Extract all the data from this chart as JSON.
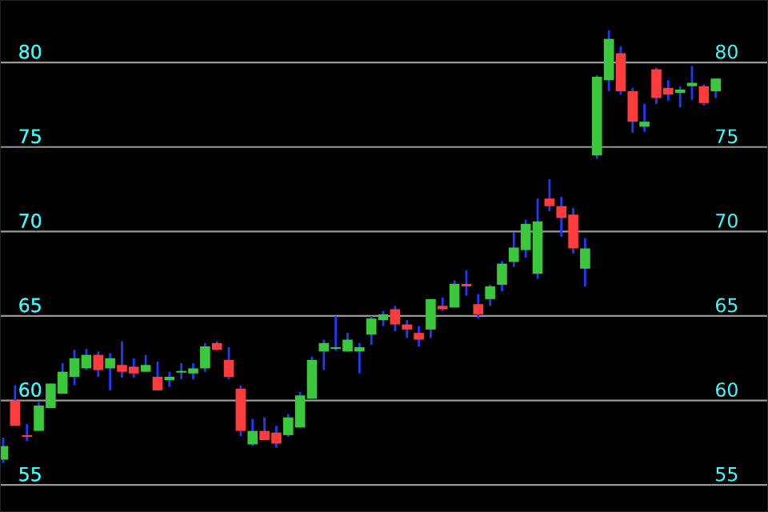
{
  "chart_data": {
    "type": "candlestick",
    "categories": [
      null,
      null,
      null,
      null,
      null,
      null,
      null,
      null,
      null,
      null,
      null,
      null,
      null,
      null,
      null,
      null,
      null,
      null,
      null,
      null,
      null,
      null,
      null,
      null,
      null,
      null,
      null,
      null,
      null,
      null,
      null,
      null,
      null,
      null,
      null,
      null,
      null,
      null,
      null,
      null,
      null,
      null,
      null,
      null,
      null,
      null,
      null,
      null,
      null,
      null,
      null,
      null,
      null,
      null,
      null,
      null,
      null,
      null,
      null,
      null,
      null
    ],
    "ohlc": [
      [
        56.5,
        57.8,
        56.3,
        57.3
      ],
      [
        60.0,
        60.9,
        58.5,
        58.5
      ],
      [
        57.95,
        58.6,
        57.6,
        57.9
      ],
      [
        58.2,
        59.9,
        58.2,
        59.7
      ],
      [
        59.55,
        61.0,
        59.55,
        61.0
      ],
      [
        60.4,
        62.2,
        60.4,
        61.7
      ],
      [
        61.4,
        63.0,
        60.9,
        62.5
      ],
      [
        61.9,
        63.05,
        61.8,
        62.7
      ],
      [
        62.7,
        62.9,
        61.4,
        61.8
      ],
      [
        61.9,
        62.8,
        60.6,
        62.5
      ],
      [
        62.1,
        63.5,
        61.35,
        61.7
      ],
      [
        62.0,
        62.5,
        61.35,
        61.6
      ],
      [
        61.7,
        62.7,
        61.7,
        62.1
      ],
      [
        61.4,
        62.3,
        60.6,
        60.6
      ],
      [
        61.2,
        61.7,
        60.8,
        61.4
      ],
      [
        61.7,
        62.2,
        61.25,
        61.75
      ],
      [
        61.6,
        62.2,
        61.25,
        61.9
      ],
      [
        61.9,
        63.4,
        61.7,
        63.2
      ],
      [
        63.4,
        63.5,
        62.95,
        63.0
      ],
      [
        62.4,
        63.15,
        61.25,
        61.4
      ],
      [
        60.7,
        60.9,
        57.9,
        58.2
      ],
      [
        57.4,
        58.9,
        57.3,
        58.2
      ],
      [
        58.2,
        59.0,
        57.65,
        57.65
      ],
      [
        58.1,
        58.5,
        57.2,
        57.45
      ],
      [
        57.95,
        59.2,
        57.85,
        59.0
      ],
      [
        58.4,
        60.5,
        58.4,
        60.3
      ],
      [
        60.1,
        62.6,
        60.1,
        62.4
      ],
      [
        62.9,
        63.6,
        61.8,
        63.4
      ],
      [
        63.1,
        65.0,
        62.95,
        63.15
      ],
      [
        62.9,
        64.0,
        62.9,
        63.6
      ],
      [
        62.9,
        63.4,
        61.6,
        63.15
      ],
      [
        63.9,
        65.0,
        63.3,
        64.85
      ],
      [
        64.75,
        65.3,
        64.4,
        65.1
      ],
      [
        65.4,
        65.6,
        64.1,
        64.5
      ],
      [
        64.5,
        64.75,
        63.7,
        64.2
      ],
      [
        64.0,
        64.4,
        63.2,
        63.6
      ],
      [
        64.2,
        66.0,
        63.7,
        66.0
      ],
      [
        65.6,
        66.1,
        65.3,
        65.4
      ],
      [
        65.5,
        67.1,
        65.5,
        66.9
      ],
      [
        66.9,
        67.7,
        66.2,
        66.75
      ],
      [
        65.7,
        66.3,
        64.85,
        65.1
      ],
      [
        66.0,
        66.85,
        65.6,
        66.75
      ],
      [
        66.85,
        68.25,
        66.45,
        68.1
      ],
      [
        68.2,
        69.95,
        67.9,
        69.05
      ],
      [
        68.9,
        70.7,
        68.45,
        70.45
      ],
      [
        67.5,
        71.95,
        67.2,
        70.6
      ],
      [
        71.95,
        73.1,
        71.2,
        71.5
      ],
      [
        71.5,
        72.05,
        69.7,
        70.8
      ],
      [
        71.0,
        71.4,
        68.7,
        69.0
      ],
      [
        67.8,
        69.6,
        66.75,
        69.0
      ],
      [
        74.5,
        79.25,
        74.3,
        79.15
      ],
      [
        78.95,
        81.9,
        78.3,
        81.4
      ],
      [
        80.55,
        80.95,
        78.1,
        78.3
      ],
      [
        78.3,
        78.5,
        75.85,
        76.5
      ],
      [
        76.2,
        77.55,
        75.9,
        76.5
      ],
      [
        79.6,
        79.7,
        77.55,
        77.9
      ],
      [
        78.5,
        78.95,
        77.75,
        78.1
      ],
      [
        78.2,
        78.6,
        77.35,
        78.4
      ],
      [
        78.6,
        79.8,
        77.8,
        78.8
      ],
      [
        78.6,
        78.7,
        77.45,
        77.6
      ],
      [
        78.3,
        79.05,
        77.9,
        79.05
      ]
    ],
    "ylim": [
      53.4,
      83.7
    ],
    "yticks": [
      55,
      60,
      65,
      70,
      75,
      80
    ],
    "y2lim": [
      53.4,
      83.7
    ],
    "y2ticks": [
      55,
      60,
      65,
      70,
      75,
      80
    ],
    "grid": "y"
  }
}
